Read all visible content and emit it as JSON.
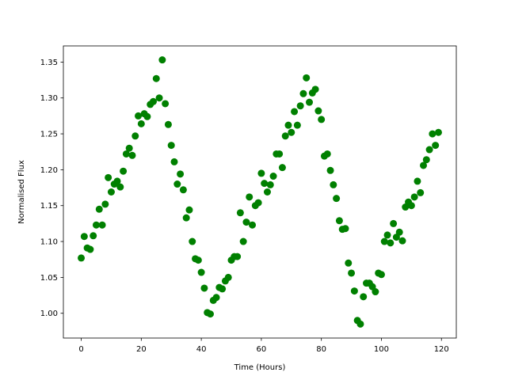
{
  "chart_data": {
    "type": "scatter",
    "xlabel": "Time (Hours)",
    "ylabel": "Normalised Flux",
    "color": "#008000",
    "x": [
      0,
      1,
      2,
      3,
      4,
      5,
      6,
      7,
      8,
      9,
      10,
      11,
      12,
      13,
      14,
      15,
      16,
      17,
      18,
      19,
      20,
      21,
      22,
      23,
      24,
      25,
      26,
      27,
      28,
      29,
      30,
      31,
      32,
      33,
      34,
      35,
      36,
      37,
      38,
      39,
      40,
      41,
      42,
      43,
      44,
      45,
      46,
      47,
      48,
      49,
      50,
      51,
      52,
      53,
      54,
      55,
      56,
      57,
      58,
      59,
      60,
      61,
      62,
      63,
      64,
      65,
      66,
      67,
      68,
      69,
      70,
      71,
      72,
      73,
      74,
      75,
      76,
      77,
      78,
      79,
      80,
      81,
      82,
      83,
      84,
      85,
      86,
      87,
      88,
      89,
      90,
      91,
      92,
      93,
      94,
      95,
      96,
      97,
      98,
      99,
      100,
      101,
      102,
      103,
      104,
      105,
      106,
      107,
      108,
      109,
      110,
      111,
      112,
      113,
      114,
      115,
      116,
      117,
      118,
      119
    ],
    "values": [
      1.077,
      1.107,
      1.091,
      1.089,
      1.108,
      1.123,
      1.145,
      1.123,
      1.152,
      1.189,
      1.169,
      1.18,
      1.184,
      1.176,
      1.198,
      1.222,
      1.23,
      1.22,
      1.247,
      1.275,
      1.264,
      1.278,
      1.274,
      1.291,
      1.295,
      1.327,
      1.3,
      1.353,
      1.292,
      1.263,
      1.234,
      1.211,
      1.18,
      1.194,
      1.172,
      1.133,
      1.144,
      1.1,
      1.076,
      1.074,
      1.057,
      1.035,
      1.001,
      0.999,
      1.018,
      1.022,
      1.036,
      1.034,
      1.045,
      1.05,
      1.074,
      1.079,
      1.079,
      1.14,
      1.1,
      1.127,
      1.162,
      1.123,
      1.15,
      1.154,
      1.195,
      1.181,
      1.169,
      1.179,
      1.191,
      1.222,
      1.222,
      1.203,
      1.247,
      1.262,
      1.252,
      1.281,
      1.262,
      1.289,
      1.306,
      1.328,
      1.294,
      1.307,
      1.312,
      1.282,
      1.27,
      1.219,
      1.222,
      1.199,
      1.179,
      1.16,
      1.129,
      1.117,
      1.118,
      1.07,
      1.056,
      1.031,
      0.99,
      0.985,
      1.023,
      1.042,
      1.042,
      1.037,
      1.03,
      1.056,
      1.054,
      1.1,
      1.109,
      1.098,
      1.125,
      1.106,
      1.113,
      1.101,
      1.148,
      1.155,
      1.15,
      1.162,
      1.184,
      1.168,
      1.206,
      1.214,
      1.228,
      1.25,
      1.234,
      1.252
    ],
    "xlim": [
      -5.95,
      124.95
    ],
    "ylim": [
      0.9655,
      1.3725
    ],
    "xticks": [
      0,
      20,
      40,
      60,
      80,
      100,
      120
    ],
    "yticks": [
      {
        "value": 1.0,
        "label": "1.00"
      },
      {
        "value": 1.05,
        "label": "1.05"
      },
      {
        "value": 1.1,
        "label": "1.10"
      },
      {
        "value": 1.15,
        "label": "1.15"
      },
      {
        "value": 1.2,
        "label": "1.20"
      },
      {
        "value": 1.25,
        "label": "1.25"
      },
      {
        "value": 1.3,
        "label": "1.30"
      },
      {
        "value": 1.35,
        "label": "1.35"
      }
    ],
    "grid": false
  }
}
